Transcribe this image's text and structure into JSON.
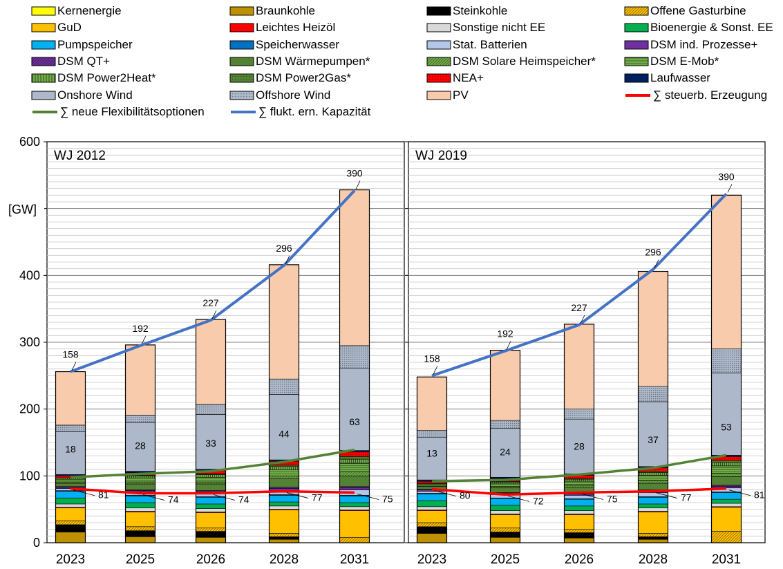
{
  "legend": [
    {
      "label": "Kernenergie",
      "color": "#ffff00",
      "pattern": "solid"
    },
    {
      "label": "Braunkohle",
      "color": "#bf9000",
      "pattern": "solid"
    },
    {
      "label": "Steinkohle",
      "color": "#000000",
      "pattern": "solid"
    },
    {
      "label": "Offene Gasturbine",
      "color": "#ffc000",
      "pattern": "diag"
    },
    {
      "label": "GuD",
      "color": "#ffc000",
      "pattern": "solid"
    },
    {
      "label": "Leichtes Heizöl",
      "color": "#ff0000",
      "pattern": "solid"
    },
    {
      "label": "Sonstige nicht EE",
      "color": "#d9d9d9",
      "pattern": "solid"
    },
    {
      "label": "Bioenergie & Sonst. EE",
      "color": "#00b050",
      "pattern": "solid"
    },
    {
      "label": "Pumpspeicher",
      "color": "#00b0f0",
      "pattern": "solid"
    },
    {
      "label": "Speicherwasser",
      "color": "#0070c0",
      "pattern": "solid"
    },
    {
      "label": "Stat. Batterien",
      "color": "#b4c7e7",
      "pattern": "solid"
    },
    {
      "label": "DSM ind. Prozesse+",
      "color": "#7030a0",
      "pattern": "solid"
    },
    {
      "label": "DSM QT+",
      "color": "#7030a0",
      "pattern": "diag"
    },
    {
      "label": "DSM Wärmepumpen*",
      "color": "#548235",
      "pattern": "solid"
    },
    {
      "label": "DSM Solare Heimspeicher*",
      "color": "#70ad47",
      "pattern": "diag"
    },
    {
      "label": "DSM E-Mob*",
      "color": "#70ad47",
      "pattern": "hlines"
    },
    {
      "label": "DSM Power2Heat*",
      "color": "#70ad47",
      "pattern": "vlines"
    },
    {
      "label": "DSM Power2Gas*",
      "color": "#548235",
      "pattern": "dots"
    },
    {
      "label": "NEA+",
      "color": "#ff0000",
      "pattern": "dots"
    },
    {
      "label": "Laufwasser",
      "color": "#002060",
      "pattern": "solid"
    },
    {
      "label": "Onshore Wind",
      "color": "#adb9ca",
      "pattern": "solid"
    },
    {
      "label": "Offshore Wind",
      "color": "#adb9ca",
      "pattern": "dots"
    },
    {
      "label": "PV",
      "color": "#f8cbad",
      "pattern": "solid"
    },
    {
      "label": "∑ steuerb. Erzeugung",
      "color": "#ff0000",
      "pattern": "line"
    },
    {
      "label": "∑ neue Flexibilitätsoptionen",
      "color": "#548235",
      "pattern": "line"
    },
    {
      "label": "∑ flukt. ern. Kapazität",
      "color": "#4472c4",
      "pattern": "line"
    }
  ],
  "chart_data": [
    {
      "type": "bar",
      "title": "WJ 2012",
      "ylabel": "[GW]",
      "ylim": [
        0,
        600
      ],
      "yticks": [
        0,
        100,
        200,
        300,
        400,
        500,
        600
      ],
      "categories": [
        "2023",
        "2025",
        "2026",
        "2028",
        "2031"
      ],
      "stacks": [
        {
          "name": "Braunkohle",
          "values": [
            16,
            9,
            8,
            5,
            0
          ]
        },
        {
          "name": "Steinkohle",
          "values": [
            11,
            9,
            9,
            4,
            0
          ]
        },
        {
          "name": "Offene Gasturbine",
          "values": [
            6,
            6,
            5,
            5,
            8
          ]
        },
        {
          "name": "GuD",
          "values": [
            19,
            22,
            23,
            35,
            40
          ]
        },
        {
          "name": "Leichtes Heizöl",
          "values": [
            1,
            1,
            1,
            1,
            1
          ]
        },
        {
          "name": "Sonstige nicht EE",
          "values": [
            5,
            5,
            5,
            5,
            5
          ]
        },
        {
          "name": "Bioenergie & Sonst. EE",
          "values": [
            9,
            8,
            7,
            6,
            6
          ]
        },
        {
          "name": "Pumpspeicher",
          "values": [
            10,
            10,
            10,
            10,
            10
          ]
        },
        {
          "name": "Speicherwasser",
          "values": [
            1,
            1,
            1,
            1,
            1
          ]
        },
        {
          "name": "Stat. Batterien",
          "values": [
            3,
            5,
            5,
            6,
            8
          ]
        },
        {
          "name": "DSM ind. Prozesse+",
          "values": [
            2,
            2,
            2,
            3,
            3
          ]
        },
        {
          "name": "DSM QT+",
          "values": [
            1,
            1,
            2,
            2,
            2
          ]
        },
        {
          "name": "DSM Wärmepumpen*",
          "values": [
            5,
            9,
            10,
            13,
            16
          ]
        },
        {
          "name": "DSM Solare Heimspeicher*",
          "values": [
            2,
            3,
            3,
            4,
            6
          ]
        },
        {
          "name": "DSM E-Mob*",
          "values": [
            4,
            6,
            7,
            9,
            13
          ]
        },
        {
          "name": "DSM Power2Heat*",
          "values": [
            2,
            3,
            4,
            5,
            6
          ]
        },
        {
          "name": "DSM Power2Gas*",
          "values": [
            0,
            1,
            1,
            2,
            4
          ]
        },
        {
          "name": "NEA+",
          "values": [
            3,
            4,
            5,
            6,
            7
          ]
        },
        {
          "name": "Laufwasser",
          "values": [
            2,
            2,
            2,
            2,
            2
          ]
        },
        {
          "name": "Onshore Wind",
          "values": [
            64,
            73,
            82,
            98,
            123
          ]
        },
        {
          "name": "Offshore Wind",
          "values": [
            10,
            11,
            15,
            23,
            34
          ]
        },
        {
          "name": "PV",
          "values": [
            80,
            105,
            127,
            171,
            233
          ]
        }
      ],
      "lines": [
        {
          "name": "∑ steuerb. Erzeugung",
          "values": [
            81,
            74,
            74,
            77,
            75
          ],
          "labels": [
            "81",
            "74",
            "74",
            "77",
            "75"
          ]
        },
        {
          "name": "∑ neue Flexibilitätsoptionen",
          "values": [
            98,
            103,
            107,
            121,
            139
          ],
          "labels": [
            "18",
            "28",
            "33",
            "44",
            "63"
          ]
        },
        {
          "name": "∑ flukt. ern. Kapazität",
          "values": [
            256,
            295,
            333,
            415,
            527
          ],
          "labels": [
            "158",
            "192",
            "227",
            "296",
            "390"
          ]
        }
      ]
    },
    {
      "type": "bar",
      "title": "WJ 2019",
      "ylim": [
        0,
        600
      ],
      "categories": [
        "2023",
        "2025",
        "2026",
        "2028",
        "2031"
      ],
      "stacks": [
        {
          "name": "Braunkohle",
          "values": [
            14,
            8,
            7,
            5,
            0
          ]
        },
        {
          "name": "Steinkohle",
          "values": [
            10,
            8,
            8,
            4,
            0
          ]
        },
        {
          "name": "Offene Gasturbine",
          "values": [
            6,
            6,
            5,
            5,
            17
          ]
        },
        {
          "name": "GuD",
          "values": [
            18,
            20,
            22,
            32,
            36
          ]
        },
        {
          "name": "Leichtes Heizöl",
          "values": [
            1,
            1,
            1,
            1,
            1
          ]
        },
        {
          "name": "Sonstige nicht EE",
          "values": [
            5,
            5,
            5,
            5,
            5
          ]
        },
        {
          "name": "Bioenergie & Sonst. EE",
          "values": [
            9,
            8,
            7,
            6,
            6
          ]
        },
        {
          "name": "Pumpspeicher",
          "values": [
            10,
            10,
            10,
            10,
            10
          ]
        },
        {
          "name": "Speicherwasser",
          "values": [
            1,
            1,
            1,
            1,
            1
          ]
        },
        {
          "name": "Stat. Batterien",
          "values": [
            3,
            5,
            5,
            6,
            6
          ]
        },
        {
          "name": "DSM ind. Prozesse+",
          "values": [
            2,
            2,
            2,
            2,
            2
          ]
        },
        {
          "name": "DSM QT+",
          "values": [
            1,
            1,
            2,
            2,
            2
          ]
        },
        {
          "name": "DSM Wärmepumpen*",
          "values": [
            4,
            7,
            8,
            10,
            13
          ]
        },
        {
          "name": "DSM Solare Heimspeicher*",
          "values": [
            1,
            2,
            3,
            4,
            5
          ]
        },
        {
          "name": "DSM E-Mob*",
          "values": [
            3,
            5,
            6,
            8,
            11
          ]
        },
        {
          "name": "DSM Power2Heat*",
          "values": [
            1,
            2,
            3,
            4,
            5
          ]
        },
        {
          "name": "DSM Power2Gas*",
          "values": [
            0,
            1,
            1,
            2,
            3
          ]
        },
        {
          "name": "NEA+",
          "values": [
            3,
            4,
            5,
            5,
            6
          ]
        },
        {
          "name": "Laufwasser",
          "values": [
            2,
            2,
            2,
            2,
            2
          ]
        },
        {
          "name": "Onshore Wind",
          "values": [
            64,
            73,
            82,
            97,
            123
          ]
        },
        {
          "name": "Offshore Wind",
          "values": [
            10,
            12,
            15,
            23,
            36
          ]
        },
        {
          "name": "PV",
          "values": [
            80,
            105,
            127,
            172,
            230
          ]
        }
      ],
      "lines": [
        {
          "name": "∑ steuerb. Erzeugung",
          "values": [
            80,
            72,
            75,
            77,
            81
          ],
          "labels": [
            "80",
            "72",
            "75",
            "77",
            "81"
          ]
        },
        {
          "name": "∑ neue Flexibilitätsoptionen",
          "values": [
            92,
            94,
            102,
            112,
            131
          ],
          "labels": [
            "13",
            "24",
            "28",
            "37",
            "53"
          ]
        },
        {
          "name": "∑ flukt. ern. Kapazität",
          "values": [
            250,
            287,
            326,
            409,
            522
          ],
          "labels": [
            "158",
            "192",
            "227",
            "296",
            "390"
          ]
        }
      ]
    }
  ]
}
